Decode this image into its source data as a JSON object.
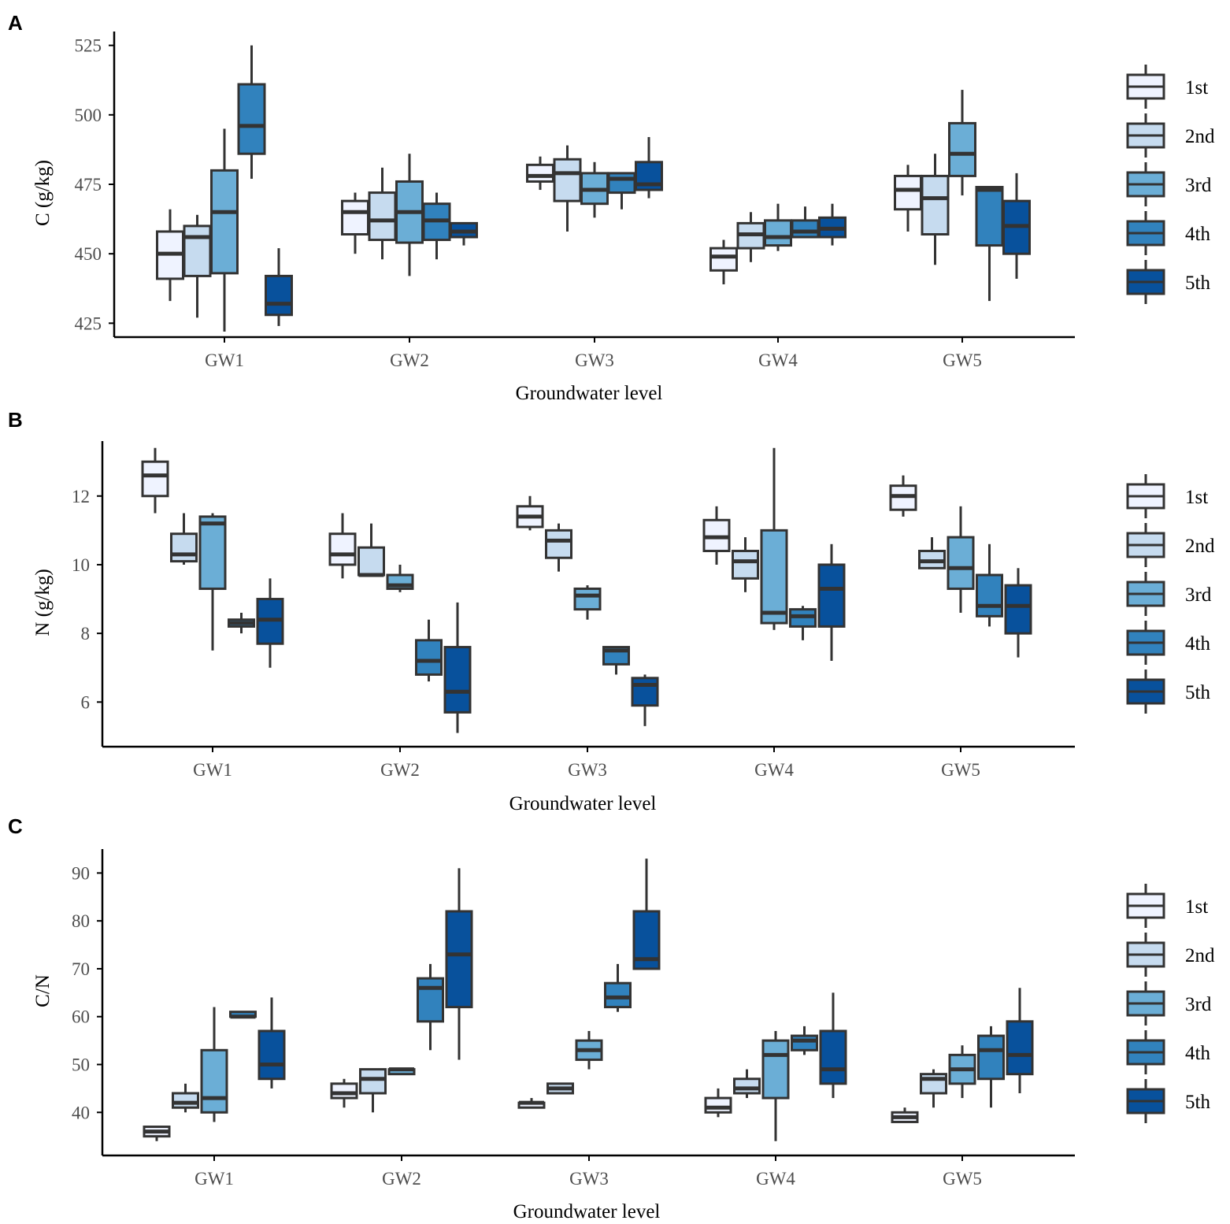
{
  "figure": {
    "groups": [
      "GW1",
      "GW2",
      "GW3",
      "GW4",
      "GW5"
    ],
    "legend": [
      "1st",
      "2nd",
      "3rd",
      "4th",
      "5th"
    ],
    "colors": [
      "#eff3ff",
      "#c6dbef",
      "#6baed6",
      "#3182bd",
      "#08519c"
    ],
    "outline_color": "#333333"
  },
  "chart_data": [
    {
      "panel": "A",
      "type": "box",
      "xlabel": "Groundwater level",
      "ylabel": "C (g/kg)",
      "ylim": [
        420,
        530
      ],
      "yticks": [
        425,
        450,
        475,
        500,
        525
      ],
      "boxes": [
        [
          [
            433,
            441,
            450,
            458,
            466
          ],
          [
            427,
            442,
            456,
            460,
            464
          ],
          [
            422,
            443,
            465,
            480,
            495
          ],
          [
            477,
            486,
            496,
            511,
            525
          ],
          [
            424,
            428,
            432,
            442,
            452
          ]
        ],
        [
          [
            450,
            457,
            465,
            469,
            472
          ],
          [
            448,
            455,
            462,
            472,
            481
          ],
          [
            442,
            454,
            465,
            476,
            486
          ],
          [
            448,
            455,
            462,
            468,
            472
          ],
          [
            453,
            456,
            458,
            461,
            461
          ]
        ],
        [
          [
            473,
            476,
            478,
            482,
            485
          ],
          [
            458,
            469,
            479,
            484,
            489
          ],
          [
            463,
            468,
            473,
            479,
            483
          ],
          [
            466,
            472,
            477,
            479,
            479
          ],
          [
            470,
            473,
            475,
            483,
            492
          ]
        ],
        [
          [
            439,
            444,
            449,
            452,
            455
          ],
          [
            447,
            452,
            457,
            461,
            465
          ],
          [
            451,
            453,
            456,
            462,
            468
          ],
          [
            456,
            456,
            458,
            462,
            467
          ],
          [
            453,
            456,
            459,
            463,
            468
          ]
        ],
        [
          [
            458,
            466,
            473,
            478,
            482
          ],
          [
            446,
            457,
            470,
            478,
            486
          ],
          [
            471,
            478,
            486,
            497,
            509
          ],
          [
            433,
            453,
            473,
            474,
            474
          ],
          [
            441,
            450,
            460,
            469,
            479
          ]
        ]
      ]
    },
    {
      "panel": "B",
      "type": "box",
      "xlabel": "Groundwater level",
      "ylabel": "N (g/kg)",
      "ylim": [
        4.7,
        13.6
      ],
      "yticks": [
        6,
        8,
        10,
        12
      ],
      "boxes": [
        [
          [
            11.5,
            12.0,
            12.6,
            13.0,
            13.4
          ],
          [
            10.0,
            10.1,
            10.3,
            10.9,
            11.5
          ],
          [
            7.5,
            9.3,
            11.2,
            11.4,
            11.5
          ],
          [
            8.0,
            8.2,
            8.3,
            8.4,
            8.6
          ],
          [
            7.0,
            7.7,
            8.4,
            9.0,
            9.6
          ]
        ],
        [
          [
            9.6,
            10.0,
            10.3,
            10.9,
            11.5
          ],
          [
            9.7,
            9.7,
            9.7,
            10.5,
            11.2
          ],
          [
            9.2,
            9.3,
            9.4,
            9.7,
            10.0
          ],
          [
            6.6,
            6.8,
            7.2,
            7.8,
            8.4
          ],
          [
            5.1,
            5.7,
            6.3,
            7.6,
            8.9
          ]
        ],
        [
          [
            11.0,
            11.1,
            11.4,
            11.7,
            12.0
          ],
          [
            9.8,
            10.2,
            10.7,
            11.0,
            11.2
          ],
          [
            8.4,
            8.7,
            9.1,
            9.3,
            9.4
          ],
          [
            6.8,
            7.1,
            7.5,
            7.6,
            7.6
          ],
          [
            5.3,
            5.9,
            6.5,
            6.7,
            6.8
          ]
        ],
        [
          [
            10.0,
            10.4,
            10.8,
            11.3,
            11.7
          ],
          [
            9.2,
            9.6,
            10.1,
            10.4,
            10.8
          ],
          [
            8.1,
            8.3,
            8.6,
            11.0,
            13.4
          ],
          [
            7.8,
            8.2,
            8.5,
            8.7,
            8.8
          ],
          [
            7.2,
            8.2,
            9.3,
            10.0,
            10.6
          ]
        ],
        [
          [
            11.4,
            11.6,
            12.0,
            12.3,
            12.6
          ],
          [
            9.9,
            9.9,
            10.1,
            10.4,
            10.8
          ],
          [
            8.6,
            9.3,
            9.9,
            10.8,
            11.7
          ],
          [
            8.2,
            8.5,
            8.8,
            9.7,
            10.6
          ],
          [
            7.3,
            8.0,
            8.8,
            9.4,
            9.9
          ]
        ]
      ]
    },
    {
      "panel": "C",
      "type": "box",
      "xlabel": "Groundwater level",
      "ylabel": "C/N",
      "ylim": [
        31,
        95
      ],
      "yticks": [
        40,
        50,
        60,
        70,
        80,
        90
      ],
      "boxes": [
        [
          [
            34,
            35,
            36,
            37,
            37
          ],
          [
            40,
            41,
            42,
            44,
            46
          ],
          [
            38,
            40,
            43,
            53,
            62
          ],
          [
            60,
            60,
            60,
            61,
            61
          ],
          [
            45,
            47,
            50,
            57,
            64
          ]
        ],
        [
          [
            41,
            43,
            44,
            46,
            47
          ],
          [
            40,
            44,
            47,
            49,
            49
          ],
          [
            48,
            48,
            49,
            49,
            49
          ],
          [
            53,
            59,
            66,
            68,
            71
          ],
          [
            51,
            62,
            73,
            82,
            91
          ]
        ],
        [
          [
            41,
            41,
            42,
            42,
            43
          ],
          [
            44,
            44,
            45,
            46,
            46
          ],
          [
            49,
            51,
            53,
            55,
            57
          ],
          [
            61,
            62,
            64,
            67,
            71
          ],
          [
            70,
            70,
            72,
            82,
            93
          ]
        ],
        [
          [
            39,
            40,
            41,
            43,
            45
          ],
          [
            43,
            44,
            45,
            47,
            49
          ],
          [
            34,
            43,
            52,
            55,
            57
          ],
          [
            52,
            53,
            55,
            56,
            58
          ],
          [
            43,
            46,
            49,
            57,
            65
          ]
        ],
        [
          [
            38,
            38,
            39,
            40,
            41
          ],
          [
            41,
            44,
            47,
            48,
            49
          ],
          [
            43,
            46,
            49,
            52,
            54
          ],
          [
            41,
            47,
            53,
            56,
            58
          ],
          [
            44,
            48,
            52,
            59,
            66
          ]
        ]
      ]
    }
  ]
}
